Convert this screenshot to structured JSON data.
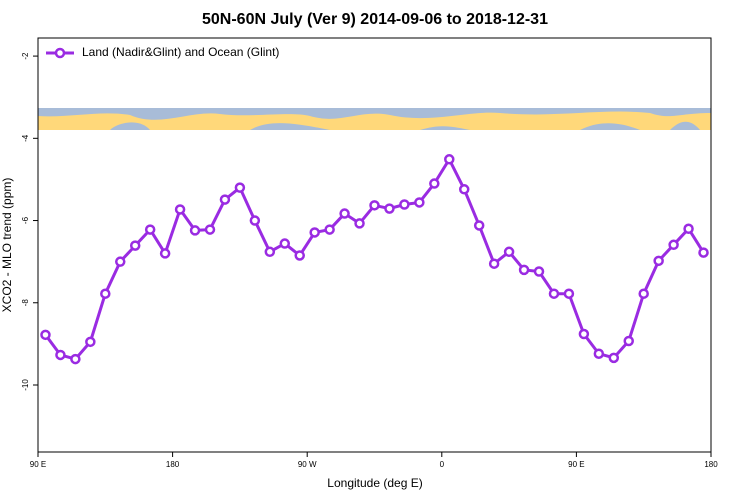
{
  "chart_data": {
    "type": "line",
    "title": "50N-60N July (Ver 9)   2014-09-06 to 2018-12-31",
    "x_label": "Longitude (deg E)",
    "y_label": "XCO2 - MLO trend (ppm)",
    "x": [
      95,
      105,
      115,
      125,
      135,
      145,
      155,
      165,
      175,
      185,
      195,
      205,
      215,
      225,
      235,
      245,
      255,
      265,
      275,
      285,
      295,
      305,
      315,
      325,
      335,
      345,
      355,
      365,
      375,
      385,
      395,
      405,
      415,
      425,
      435,
      445,
      455,
      465,
      475,
      485,
      495,
      505,
      515,
      525,
      535
    ],
    "series": [
      {
        "name": "Land (Nadir&Glint) and Ocean (Glint)",
        "color": "#9a2be2",
        "values": [
          -8.78,
          -9.27,
          -9.37,
          -8.95,
          -7.78,
          -7.0,
          -6.61,
          -6.22,
          -6.8,
          -5.73,
          -6.24,
          -6.22,
          -5.49,
          -5.2,
          -6.0,
          -6.76,
          -6.56,
          -6.85,
          -6.29,
          -6.22,
          -5.83,
          -6.07,
          -5.63,
          -5.71,
          -5.61,
          -5.56,
          -5.1,
          -4.51,
          -5.24,
          -6.12,
          -7.05,
          -6.76,
          -7.2,
          -7.24,
          -7.78,
          -7.78,
          -8.76,
          -9.24,
          -9.34,
          -8.93,
          -7.78,
          -6.98,
          -6.59,
          -6.2,
          -6.78
        ]
      }
    ],
    "xlim": [
      90,
      540
    ],
    "xticks": [
      {
        "value": 90,
        "label": "90 E"
      },
      180,
      {
        "value": 270,
        "label": "90 W"
      },
      {
        "value": 360,
        "label": "0"
      },
      {
        "value": 450,
        "label": "90 E"
      },
      {
        "value": 540,
        "label": "180"
      }
    ],
    "ylim": [
      -1.56,
      -11.63
    ],
    "yticks": [
      -2,
      -4,
      -6,
      -8,
      -10
    ],
    "legend": "top-left"
  }
}
